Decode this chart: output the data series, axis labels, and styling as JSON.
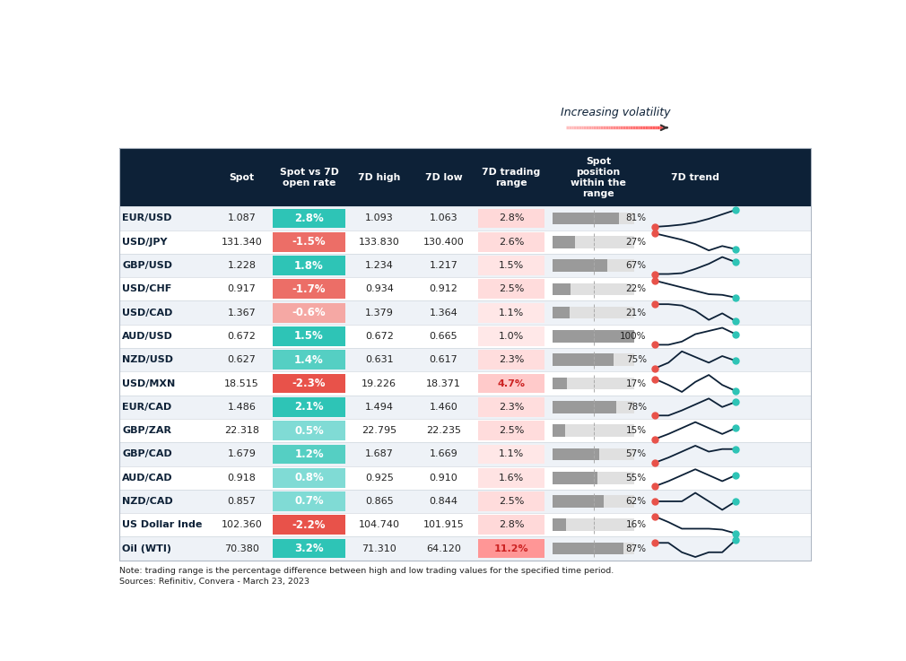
{
  "header_bg": "#0d2137",
  "header_fg": "#ffffff",
  "col_labels": [
    "",
    "Spot",
    "Spot vs 7D\nopen rate",
    "7D high",
    "7D low",
    "7D trading\nrange",
    "Spot\nposition\nwithin the\nrange",
    "7D trend"
  ],
  "currencies": [
    "EUR/USD",
    "USD/JPY",
    "GBP/USD",
    "USD/CHF",
    "USD/CAD",
    "AUD/USD",
    "NZD/USD",
    "USD/MXN",
    "EUR/CAD",
    "GBP/ZAR",
    "GBP/CAD",
    "AUD/CAD",
    "NZD/CAD",
    "US Dollar Inde",
    "Oil (WTI)"
  ],
  "spot": [
    "1.087",
    "131.340",
    "1.228",
    "0.917",
    "1.367",
    "0.672",
    "0.627",
    "18.515",
    "1.486",
    "22.318",
    "1.679",
    "0.918",
    "0.857",
    "102.360",
    "70.380"
  ],
  "spot_vs_7d": [
    "2.8%",
    "-1.5%",
    "1.8%",
    "-1.7%",
    "-0.6%",
    "1.5%",
    "1.4%",
    "-2.3%",
    "2.1%",
    "0.5%",
    "1.2%",
    "0.8%",
    "0.7%",
    "-2.2%",
    "3.2%"
  ],
  "spot_vs_7d_vals": [
    2.8,
    -1.5,
    1.8,
    -1.7,
    -0.6,
    1.5,
    1.4,
    -2.3,
    2.1,
    0.5,
    1.2,
    0.8,
    0.7,
    -2.2,
    3.2
  ],
  "high_7d": [
    "1.093",
    "133.830",
    "1.234",
    "0.934",
    "1.379",
    "0.672",
    "0.631",
    "19.226",
    "1.494",
    "22.795",
    "1.687",
    "0.925",
    "0.865",
    "104.740",
    "71.310"
  ],
  "low_7d": [
    "1.063",
    "130.400",
    "1.217",
    "0.912",
    "1.364",
    "0.665",
    "0.617",
    "18.371",
    "1.460",
    "22.235",
    "1.669",
    "0.910",
    "0.844",
    "101.915",
    "64.120"
  ],
  "trading_range": [
    "2.8%",
    "2.6%",
    "1.5%",
    "2.5%",
    "1.1%",
    "1.0%",
    "2.3%",
    "4.7%",
    "2.3%",
    "2.5%",
    "1.1%",
    "1.6%",
    "2.5%",
    "2.8%",
    "11.2%"
  ],
  "trading_range_vals": [
    2.8,
    2.6,
    1.5,
    2.5,
    1.1,
    1.0,
    2.3,
    4.7,
    2.3,
    2.5,
    1.1,
    1.6,
    2.5,
    2.8,
    11.2
  ],
  "spot_position": [
    81,
    27,
    67,
    22,
    21,
    100,
    75,
    17,
    78,
    15,
    57,
    55,
    62,
    16,
    87
  ],
  "trend_data": [
    [
      0,
      0.2,
      0.5,
      1.0,
      1.8,
      2.8,
      3.8
    ],
    [
      3.5,
      3.0,
      2.5,
      1.8,
      0.8,
      1.5,
      1.0
    ],
    [
      0,
      0,
      0.1,
      0.6,
      1.2,
      2.0,
      1.4
    ],
    [
      2.5,
      2.0,
      1.5,
      1.0,
      0.5,
      0.4,
      0.0
    ],
    [
      1.5,
      1.5,
      1.4,
      1.0,
      0.3,
      0.8,
      0.2
    ],
    [
      0.2,
      0.2,
      0.5,
      1.2,
      1.5,
      1.8,
      1.2
    ],
    [
      0.2,
      0.8,
      2.0,
      1.4,
      0.8,
      1.5,
      1.0
    ],
    [
      1.8,
      1.2,
      0.5,
      1.5,
      2.2,
      1.2,
      0.6
    ],
    [
      0.2,
      0.2,
      0.8,
      1.5,
      2.2,
      1.2,
      1.8
    ],
    [
      0.2,
      0.8,
      1.5,
      2.2,
      1.5,
      0.8,
      1.5
    ],
    [
      0.2,
      0.8,
      1.5,
      2.2,
      1.5,
      1.8,
      1.8
    ],
    [
      0.2,
      0.8,
      1.5,
      2.2,
      1.5,
      0.8,
      1.5
    ],
    [
      1.5,
      1.5,
      1.5,
      2.2,
      1.5,
      0.8,
      1.5
    ],
    [
      1.8,
      1.2,
      0.5,
      0.5,
      0.5,
      0.4,
      0.0
    ],
    [
      1.5,
      1.5,
      0.5,
      0.0,
      0.5,
      0.5,
      1.8
    ]
  ],
  "trend_start_color": "#e8524a",
  "trend_end_color": "#2ec4b6",
  "trend_line_color": "#0d2137",
  "positive_color": "#2ec4b6",
  "negative_color": "#e8524a",
  "note_text": "Note: trading range is the percentage difference between high and low trading values for the specified time period.\nSources: Refinitiv, Convera - March 23, 2023",
  "title_arrow_text": "Increasing volatility",
  "volatility_arrow_color": "#0d2137"
}
